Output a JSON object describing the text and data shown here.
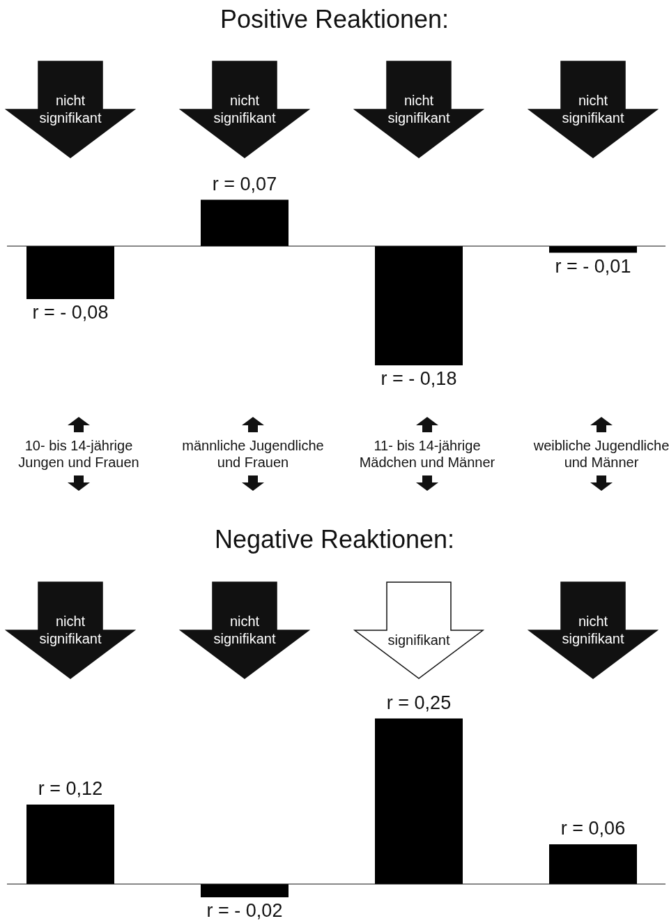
{
  "chart_data": [
    {
      "type": "bar",
      "title": "Positive Reaktionen:",
      "categories": [
        "10- bis 14-jährige Jungen und Frauen",
        "männliche Jugendliche und Frauen",
        "11- bis 14-jährige Mädchen und Männer",
        "weibliche Jugendliche und Männer"
      ],
      "values": [
        -0.08,
        0.07,
        -0.18,
        -0.01
      ],
      "value_labels": [
        "r = - 0,08",
        "r = 0,07",
        "r = - 0,18",
        "r = - 0,01"
      ],
      "color": "#000000",
      "tick_labels": "x",
      "annotations": [
        "nicht signifikant",
        "nicht signifikant",
        "nicht signifikant",
        "nicht signifikant"
      ]
    },
    {
      "type": "bar",
      "title": "Negative Reaktionen:",
      "categories": [
        null,
        null,
        null,
        null
      ],
      "values": [
        0.12,
        -0.02,
        0.25,
        0.06
      ],
      "value_labels": [
        "r = 0,12",
        "r = - 0,02",
        "r = 0,25",
        "r = 0,06"
      ],
      "color": "#000000",
      "tick_labels": false,
      "annotations": [
        "nicht signifikant",
        "nicht signifikant",
        "signifikant",
        "nicht signifikant"
      ]
    }
  ]
}
